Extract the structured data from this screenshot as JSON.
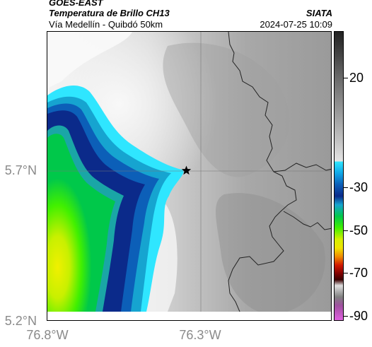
{
  "header": {
    "title_1": "GOES-EAST",
    "title_2": "Temperatura de Brillo CH13",
    "title_3": "Vía Medellín - Quibdó 50km",
    "org": "SIATA",
    "datetime": "2024-07-25 10:09"
  },
  "axes": {
    "y_ticks": [
      "5.7°N",
      "5.2°N"
    ],
    "x_ticks": [
      "76.8°W",
      "76.3°W"
    ]
  },
  "colorbar": {
    "labels": [
      "20",
      "-30",
      "-50",
      "-70",
      "-90"
    ]
  },
  "marker": {
    "icon": "star-icon"
  },
  "colors": {
    "warm_gray": "#bdbdbd",
    "cold_cyan": "#2fe6ff",
    "deep_blue": "#0b2a8a",
    "green": "#41f000",
    "yellow": "#e8f000"
  }
}
